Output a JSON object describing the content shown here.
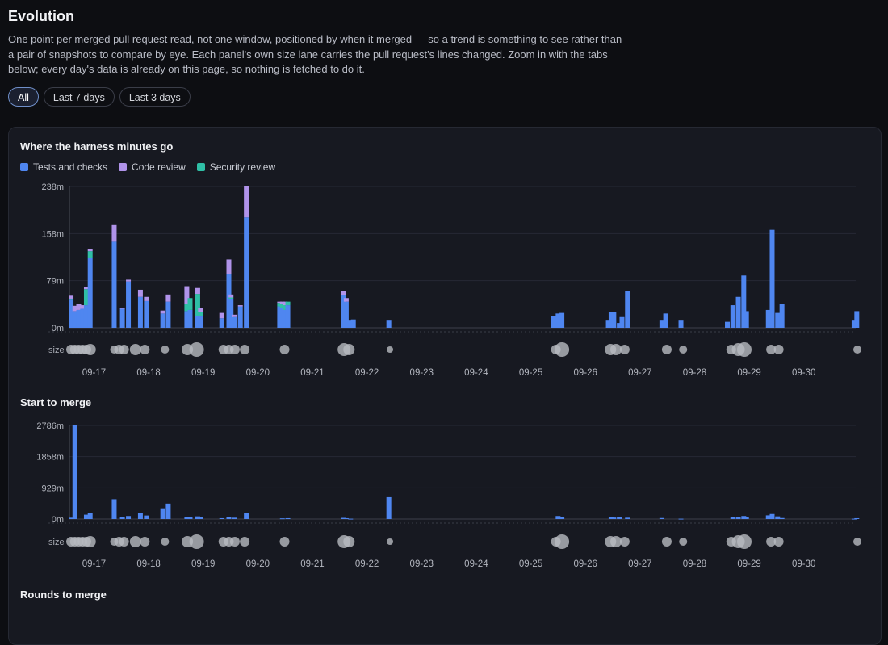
{
  "header": {
    "title": "Evolution",
    "description": "One point per merged pull request read, not one window, positioned by when it merged — so a trend is something to see rather than a pair of snapshots to compare by eye. Each panel's own size lane carries the pull request's lines changed. Zoom in with the tabs below; every day's data is already on this page, so nothing is fetched to do it."
  },
  "tabs": [
    {
      "label": "All",
      "active": true
    },
    {
      "label": "Last 7 days",
      "active": false
    },
    {
      "label": "Last 3 days",
      "active": false
    }
  ],
  "colors": {
    "tests": "#4f86f0",
    "code_review": "#b093ea",
    "security_review": "#2fbfa6",
    "size_dot": "#b8bac0"
  },
  "chart_data": [
    {
      "type": "bar",
      "stacked": true,
      "title": "Where the harness minutes go",
      "legend": [
        "Tests and checks",
        "Code review",
        "Security review"
      ],
      "legend_position": "top-left",
      "y_ticks": [
        "0m",
        "79m",
        "158m",
        "238m"
      ],
      "ylim": [
        0,
        238
      ],
      "x_ticks": [
        "09-17",
        "09-18",
        "09-19",
        "09-20",
        "09-21",
        "09-22",
        "09-23",
        "09-24",
        "09-25",
        "09-26",
        "09-27",
        "09-28",
        "09-29",
        "09-30"
      ],
      "x_day_range": [
        16.55,
        30.98
      ],
      "size_lane_label": "size",
      "grid": true,
      "bars": [
        {
          "t": 16.58,
          "tests": 47,
          "review": 5,
          "security": 2
        },
        {
          "t": 16.65,
          "tests": 28,
          "review": 9,
          "security": 0
        },
        {
          "t": 16.72,
          "tests": 30,
          "review": 10,
          "security": 0
        },
        {
          "t": 16.79,
          "tests": 32,
          "review": 6,
          "security": 0
        },
        {
          "t": 16.86,
          "tests": 38,
          "review": 3,
          "security": 27
        },
        {
          "t": 16.93,
          "tests": 118,
          "review": 4,
          "security": 11
        },
        {
          "t": 17.37,
          "tests": 145,
          "review": 28,
          "security": 0
        },
        {
          "t": 17.52,
          "tests": 32,
          "review": 2,
          "security": 0
        },
        {
          "t": 17.63,
          "tests": 78,
          "review": 3,
          "security": 0
        },
        {
          "t": 17.85,
          "tests": 52,
          "review": 12,
          "security": 0
        },
        {
          "t": 17.96,
          "tests": 45,
          "review": 7,
          "security": 0
        },
        {
          "t": 18.26,
          "tests": 24,
          "review": 5,
          "security": 0
        },
        {
          "t": 18.36,
          "tests": 44,
          "review": 12,
          "security": 0
        },
        {
          "t": 18.7,
          "tests": 28,
          "review": 30,
          "security": 12
        },
        {
          "t": 18.76,
          "tests": 30,
          "review": 0,
          "security": 20
        },
        {
          "t": 18.9,
          "tests": 20,
          "review": 10,
          "security": 37
        },
        {
          "t": 18.95,
          "tests": 19,
          "review": 6,
          "security": 8
        },
        {
          "t": 19.34,
          "tests": 16,
          "review": 9,
          "security": 0
        },
        {
          "t": 19.47,
          "tests": 90,
          "review": 25,
          "security": 0
        },
        {
          "t": 19.51,
          "tests": 48,
          "review": 5,
          "security": 3
        },
        {
          "t": 19.57,
          "tests": 18,
          "review": 4,
          "security": 0
        },
        {
          "t": 19.68,
          "tests": 36,
          "review": 2,
          "security": 0
        },
        {
          "t": 19.79,
          "tests": 186,
          "review": 52,
          "security": 0
        },
        {
          "t": 20.4,
          "tests": 36,
          "review": 2,
          "security": 6
        },
        {
          "t": 20.45,
          "tests": 34,
          "review": 4,
          "security": 6
        },
        {
          "t": 20.5,
          "tests": 30,
          "review": 6,
          "security": 8
        },
        {
          "t": 20.55,
          "tests": 38,
          "review": 0,
          "security": 6
        },
        {
          "t": 21.57,
          "tests": 55,
          "review": 7,
          "security": 0
        },
        {
          "t": 21.62,
          "tests": 44,
          "review": 6,
          "security": 0
        },
        {
          "t": 21.7,
          "tests": 12,
          "review": 0,
          "security": 0
        },
        {
          "t": 21.75,
          "tests": 14,
          "review": 0,
          "security": 0
        },
        {
          "t": 22.4,
          "tests": 12,
          "review": 0,
          "security": 0
        },
        {
          "t": 25.42,
          "tests": 20,
          "review": 0,
          "security": 0
        },
        {
          "t": 25.5,
          "tests": 24,
          "review": 0,
          "security": 0
        },
        {
          "t": 25.57,
          "tests": 25,
          "review": 0,
          "security": 0
        },
        {
          "t": 26.42,
          "tests": 12,
          "review": 0,
          "security": 0
        },
        {
          "t": 26.47,
          "tests": 26,
          "review": 0,
          "security": 0
        },
        {
          "t": 26.52,
          "tests": 27,
          "review": 0,
          "security": 0
        },
        {
          "t": 26.62,
          "tests": 8,
          "review": 0,
          "security": 0
        },
        {
          "t": 26.67,
          "tests": 18,
          "review": 0,
          "security": 0
        },
        {
          "t": 26.77,
          "tests": 62,
          "review": 0,
          "security": 0
        },
        {
          "t": 27.4,
          "tests": 12,
          "review": 0,
          "security": 0
        },
        {
          "t": 27.47,
          "tests": 24,
          "review": 0,
          "security": 0
        },
        {
          "t": 27.75,
          "tests": 12,
          "review": 0,
          "security": 0
        },
        {
          "t": 28.6,
          "tests": 10,
          "review": 0,
          "security": 0
        },
        {
          "t": 28.7,
          "tests": 38,
          "review": 0,
          "security": 0
        },
        {
          "t": 28.8,
          "tests": 52,
          "review": 0,
          "security": 0
        },
        {
          "t": 28.9,
          "tests": 88,
          "review": 0,
          "security": 0
        },
        {
          "t": 28.95,
          "tests": 28,
          "review": 0,
          "security": 0
        },
        {
          "t": 29.35,
          "tests": 30,
          "review": 0,
          "security": 0
        },
        {
          "t": 29.42,
          "tests": 165,
          "review": 0,
          "security": 0
        },
        {
          "t": 29.52,
          "tests": 25,
          "review": 0,
          "security": 0
        },
        {
          "t": 29.6,
          "tests": 40,
          "review": 0,
          "security": 0
        },
        {
          "t": 30.92,
          "tests": 12,
          "review": 0,
          "security": 0
        },
        {
          "t": 30.97,
          "tests": 28,
          "review": 0,
          "security": 0
        }
      ]
    },
    {
      "type": "bar",
      "title": "Start to merge",
      "y_ticks": [
        "0m",
        "929m",
        "1858m",
        "2786m"
      ],
      "ylim": [
        0,
        2786
      ],
      "x_ticks": [
        "09-17",
        "09-18",
        "09-19",
        "09-20",
        "09-21",
        "09-22",
        "09-23",
        "09-24",
        "09-25",
        "09-26",
        "09-27",
        "09-28",
        "09-29",
        "09-30"
      ],
      "x_day_range": [
        16.55,
        30.98
      ],
      "size_lane_label": "size",
      "grid": true,
      "bars": [
        {
          "t": 16.58,
          "value": 40
        },
        {
          "t": 16.65,
          "value": 2786
        },
        {
          "t": 16.86,
          "value": 130
        },
        {
          "t": 16.93,
          "value": 180
        },
        {
          "t": 17.37,
          "value": 590
        },
        {
          "t": 17.52,
          "value": 60
        },
        {
          "t": 17.63,
          "value": 90
        },
        {
          "t": 17.85,
          "value": 170
        },
        {
          "t": 17.96,
          "value": 105
        },
        {
          "t": 18.26,
          "value": 320
        },
        {
          "t": 18.36,
          "value": 460
        },
        {
          "t": 18.7,
          "value": 70
        },
        {
          "t": 18.76,
          "value": 60
        },
        {
          "t": 18.9,
          "value": 80
        },
        {
          "t": 18.95,
          "value": 70
        },
        {
          "t": 19.34,
          "value": 25
        },
        {
          "t": 19.47,
          "value": 70
        },
        {
          "t": 19.57,
          "value": 40
        },
        {
          "t": 19.79,
          "value": 180
        },
        {
          "t": 20.45,
          "value": 20
        },
        {
          "t": 20.55,
          "value": 25
        },
        {
          "t": 21.57,
          "value": 35
        },
        {
          "t": 21.62,
          "value": 25
        },
        {
          "t": 21.7,
          "value": 10
        },
        {
          "t": 22.4,
          "value": 650
        },
        {
          "t": 25.5,
          "value": 90
        },
        {
          "t": 25.57,
          "value": 50
        },
        {
          "t": 26.47,
          "value": 60
        },
        {
          "t": 26.52,
          "value": 45
        },
        {
          "t": 26.62,
          "value": 70
        },
        {
          "t": 26.77,
          "value": 40
        },
        {
          "t": 27.4,
          "value": 30
        },
        {
          "t": 27.75,
          "value": 10
        },
        {
          "t": 28.7,
          "value": 50
        },
        {
          "t": 28.8,
          "value": 55
        },
        {
          "t": 28.9,
          "value": 90
        },
        {
          "t": 28.95,
          "value": 60
        },
        {
          "t": 29.35,
          "value": 110
        },
        {
          "t": 29.42,
          "value": 150
        },
        {
          "t": 29.52,
          "value": 80
        },
        {
          "t": 29.6,
          "value": 30
        },
        {
          "t": 30.92,
          "value": 10
        },
        {
          "t": 30.97,
          "value": 25
        }
      ]
    }
  ],
  "size_points": [
    {
      "t": 16.58,
      "r": 6
    },
    {
      "t": 16.65,
      "r": 6
    },
    {
      "t": 16.72,
      "r": 6
    },
    {
      "t": 16.79,
      "r": 6
    },
    {
      "t": 16.86,
      "r": 6
    },
    {
      "t": 16.93,
      "r": 7
    },
    {
      "t": 17.37,
      "r": 5
    },
    {
      "t": 17.46,
      "r": 6
    },
    {
      "t": 17.55,
      "r": 6
    },
    {
      "t": 17.76,
      "r": 7
    },
    {
      "t": 17.93,
      "r": 6
    },
    {
      "t": 18.3,
      "r": 5
    },
    {
      "t": 18.71,
      "r": 7
    },
    {
      "t": 18.88,
      "r": 9
    },
    {
      "t": 19.37,
      "r": 6
    },
    {
      "t": 19.47,
      "r": 6
    },
    {
      "t": 19.58,
      "r": 6
    },
    {
      "t": 19.76,
      "r": 6
    },
    {
      "t": 20.49,
      "r": 6
    },
    {
      "t": 21.58,
      "r": 8
    },
    {
      "t": 21.67,
      "r": 7
    },
    {
      "t": 22.42,
      "r": 4
    },
    {
      "t": 25.46,
      "r": 6
    },
    {
      "t": 25.57,
      "r": 9
    },
    {
      "t": 26.46,
      "r": 7
    },
    {
      "t": 26.56,
      "r": 7
    },
    {
      "t": 26.72,
      "r": 6
    },
    {
      "t": 27.49,
      "r": 6
    },
    {
      "t": 27.79,
      "r": 5
    },
    {
      "t": 28.67,
      "r": 6
    },
    {
      "t": 28.8,
      "r": 8
    },
    {
      "t": 28.91,
      "r": 9
    },
    {
      "t": 29.4,
      "r": 6
    },
    {
      "t": 29.54,
      "r": 6
    },
    {
      "t": 30.98,
      "r": 5
    }
  ],
  "panel3": {
    "title": "Rounds to merge"
  }
}
